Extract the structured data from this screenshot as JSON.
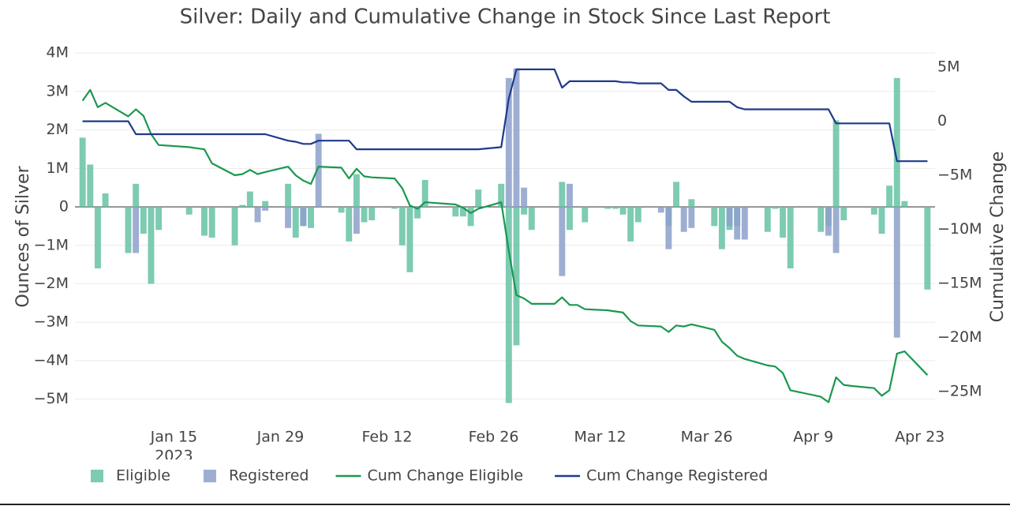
{
  "chart_data": {
    "type": "combo",
    "title": "Silver: Daily and Cumulative Change in Stock Since Last Report",
    "y_title": "Ounces of Silver",
    "y2_title": "Cumulative Change",
    "x": [
      "2023-01-03",
      "2023-01-04",
      "2023-01-05",
      "2023-01-06",
      "2023-01-09",
      "2023-01-10",
      "2023-01-11",
      "2023-01-12",
      "2023-01-13",
      "2023-01-17",
      "2023-01-18",
      "2023-01-19",
      "2023-01-20",
      "2023-01-23",
      "2023-01-24",
      "2023-01-25",
      "2023-01-26",
      "2023-01-27",
      "2023-01-30",
      "2023-01-31",
      "2023-02-01",
      "2023-02-02",
      "2023-02-03",
      "2023-02-06",
      "2023-02-07",
      "2023-02-08",
      "2023-02-09",
      "2023-02-10",
      "2023-02-13",
      "2023-02-14",
      "2023-02-15",
      "2023-02-16",
      "2023-02-17",
      "2023-02-21",
      "2023-02-22",
      "2023-02-23",
      "2023-02-24",
      "2023-02-27",
      "2023-02-28",
      "2023-03-01",
      "2023-03-02",
      "2023-03-03",
      "2023-03-06",
      "2023-03-07",
      "2023-03-08",
      "2023-03-09",
      "2023-03-10",
      "2023-03-13",
      "2023-03-14",
      "2023-03-15",
      "2023-03-16",
      "2023-03-17",
      "2023-03-20",
      "2023-03-21",
      "2023-03-22",
      "2023-03-23",
      "2023-03-24",
      "2023-03-27",
      "2023-03-28",
      "2023-03-29",
      "2023-03-30",
      "2023-03-31",
      "2023-04-03",
      "2023-04-04",
      "2023-04-05",
      "2023-04-06",
      "2023-04-10",
      "2023-04-11",
      "2023-04-12",
      "2023-04-13",
      "2023-04-14",
      "2023-04-17",
      "2023-04-18",
      "2023-04-19",
      "2023-04-20",
      "2023-04-21",
      "2023-04-24"
    ],
    "series": [
      {
        "name": "Eligible",
        "type": "bar",
        "color": "#66c2a5",
        "values": [
          1800000,
          1100000,
          -1600000,
          350000,
          -1200000,
          600000,
          -700000,
          -2000000,
          -600000,
          -200000,
          null,
          -750000,
          -800000,
          -1000000,
          50000,
          400000,
          null,
          150000,
          600000,
          -800000,
          -500000,
          -550000,
          null,
          -150000,
          -900000,
          850000,
          -400000,
          -350000,
          -50000,
          -1000000,
          -1700000,
          -300000,
          700000,
          -250000,
          -250000,
          -500000,
          450000,
          600000,
          -5100000,
          -3600000,
          -200000,
          -600000,
          null,
          650000,
          -600000,
          null,
          -400000,
          -50000,
          -50000,
          -200000,
          -900000,
          -400000,
          null,
          -500000,
          650000,
          null,
          200000,
          -500000,
          -1100000,
          -600000,
          -500000,
          null,
          -650000,
          -50000,
          -800000,
          -1600000,
          -650000,
          -500000,
          2250000,
          -350000,
          null,
          -200000,
          -700000,
          550000,
          3350000,
          150000,
          -2150000
        ]
      },
      {
        "name": "Registered",
        "type": "bar",
        "color": "#8da0cb",
        "values": [
          null,
          null,
          null,
          null,
          null,
          -1200000,
          null,
          null,
          null,
          null,
          null,
          null,
          null,
          null,
          null,
          null,
          -400000,
          -100000,
          -550000,
          null,
          -500000,
          null,
          1900000,
          null,
          null,
          -700000,
          null,
          null,
          null,
          null,
          null,
          null,
          null,
          null,
          null,
          null,
          null,
          null,
          3350000,
          3600000,
          500000,
          null,
          null,
          -1800000,
          600000,
          null,
          null,
          null,
          null,
          null,
          null,
          null,
          -150000,
          -1100000,
          null,
          -650000,
          -550000,
          null,
          null,
          -500000,
          -850000,
          -850000,
          null,
          null,
          null,
          null,
          null,
          -750000,
          -1200000,
          null,
          null,
          null,
          null,
          null,
          -3400000,
          null,
          null
        ]
      },
      {
        "name": "Cum Change Eligible",
        "type": "line",
        "axis": "y2",
        "color": "#1a9850",
        "values": [
          1900000,
          2900000,
          1300000,
          1700000,
          450000,
          1100000,
          500000,
          -1200000,
          -2200000,
          -2400000,
          -2500000,
          -2600000,
          -3900000,
          -5000000,
          -4900000,
          -4500000,
          -4900000,
          -4700000,
          -4200000,
          -5000000,
          -5500000,
          -5800000,
          -4200000,
          -4300000,
          -5300000,
          -4400000,
          -5100000,
          -5200000,
          -5300000,
          -6200000,
          -7800000,
          -8100000,
          -7500000,
          -7700000,
          -8000000,
          -8500000,
          -8100000,
          -7500000,
          -12000000,
          -16100000,
          -16400000,
          -16900000,
          -16900000,
          -16300000,
          -17000000,
          -17000000,
          -17400000,
          -17500000,
          -17600000,
          -17700000,
          -18500000,
          -18900000,
          -19000000,
          -19500000,
          -18900000,
          -19000000,
          -18800000,
          -19300000,
          -20400000,
          -21000000,
          -21700000,
          -22000000,
          -22600000,
          -22700000,
          -23300000,
          -24900000,
          -25500000,
          -26000000,
          -23700000,
          -24400000,
          -24500000,
          -24700000,
          -25400000,
          -24900000,
          -21500000,
          -21300000,
          -23500000
        ]
      },
      {
        "name": "Cum Change Registered",
        "type": "line",
        "axis": "y2",
        "color": "#1f3a8a",
        "values": [
          0,
          0,
          0,
          0,
          0,
          -1200000,
          -1200000,
          -1200000,
          -1200000,
          -1200000,
          -1200000,
          -1200000,
          -1200000,
          -1200000,
          -1200000,
          -1200000,
          -1200000,
          -1200000,
          -1800000,
          -1900000,
          -2100000,
          -2100000,
          -1800000,
          -1800000,
          -1800000,
          -2600000,
          -2600000,
          -2600000,
          -2600000,
          -2600000,
          -2600000,
          -2600000,
          -2600000,
          -2600000,
          -2600000,
          -2600000,
          -2600000,
          -2400000,
          2100000,
          4800000,
          4800000,
          4800000,
          4800000,
          3100000,
          3700000,
          3700000,
          3700000,
          3700000,
          3700000,
          3600000,
          3600000,
          3500000,
          3500000,
          2900000,
          2900000,
          2300000,
          1800000,
          1800000,
          1800000,
          1800000,
          1300000,
          1100000,
          1100000,
          1100000,
          1100000,
          1100000,
          1100000,
          1100000,
          -200000,
          -200000,
          -200000,
          -200000,
          -200000,
          -200000,
          -3700000,
          -3700000,
          -3700000
        ]
      }
    ],
    "xlim": [
      "2023-01-02",
      "2023-04-25"
    ],
    "xticks": [
      {
        "value": "2023-01-15",
        "label": "Jan 15"
      },
      {
        "value": "2023-01-29",
        "label": "Jan 29"
      },
      {
        "value": "2023-02-12",
        "label": "Feb 12"
      },
      {
        "value": "2023-02-26",
        "label": "Feb 26"
      },
      {
        "value": "2023-03-12",
        "label": "Mar 12"
      },
      {
        "value": "2023-03-26",
        "label": "Mar 26"
      },
      {
        "value": "2023-04-09",
        "label": "Apr 9"
      },
      {
        "value": "2023-04-23",
        "label": "Apr 23"
      }
    ],
    "xtick_year": "2023",
    "ylim": [
      -5500000,
      4250000
    ],
    "yticks": [
      {
        "value": -5000000,
        "label": "−5M"
      },
      {
        "value": -4000000,
        "label": "−4M"
      },
      {
        "value": -3000000,
        "label": "−3M"
      },
      {
        "value": -2000000,
        "label": "−2M"
      },
      {
        "value": -1000000,
        "label": "−1M"
      },
      0,
      {
        "value": 1000000,
        "label": "1M"
      },
      {
        "value": 2000000,
        "label": "2M"
      },
      {
        "value": 3000000,
        "label": "3M"
      },
      {
        "value": 4000000,
        "label": "4M"
      }
    ],
    "y2lim": [
      -27500000,
      7200000
    ],
    "y2ticks": [
      {
        "value": -25000000,
        "label": "−25M"
      },
      {
        "value": -20000000,
        "label": "−20M"
      },
      {
        "value": -15000000,
        "label": "−15M"
      },
      {
        "value": -10000000,
        "label": "−10M"
      },
      {
        "value": -5000000,
        "label": "−5M"
      },
      0,
      {
        "value": 5000000,
        "label": "5M"
      }
    ],
    "grid": true,
    "legend": "bottom"
  }
}
